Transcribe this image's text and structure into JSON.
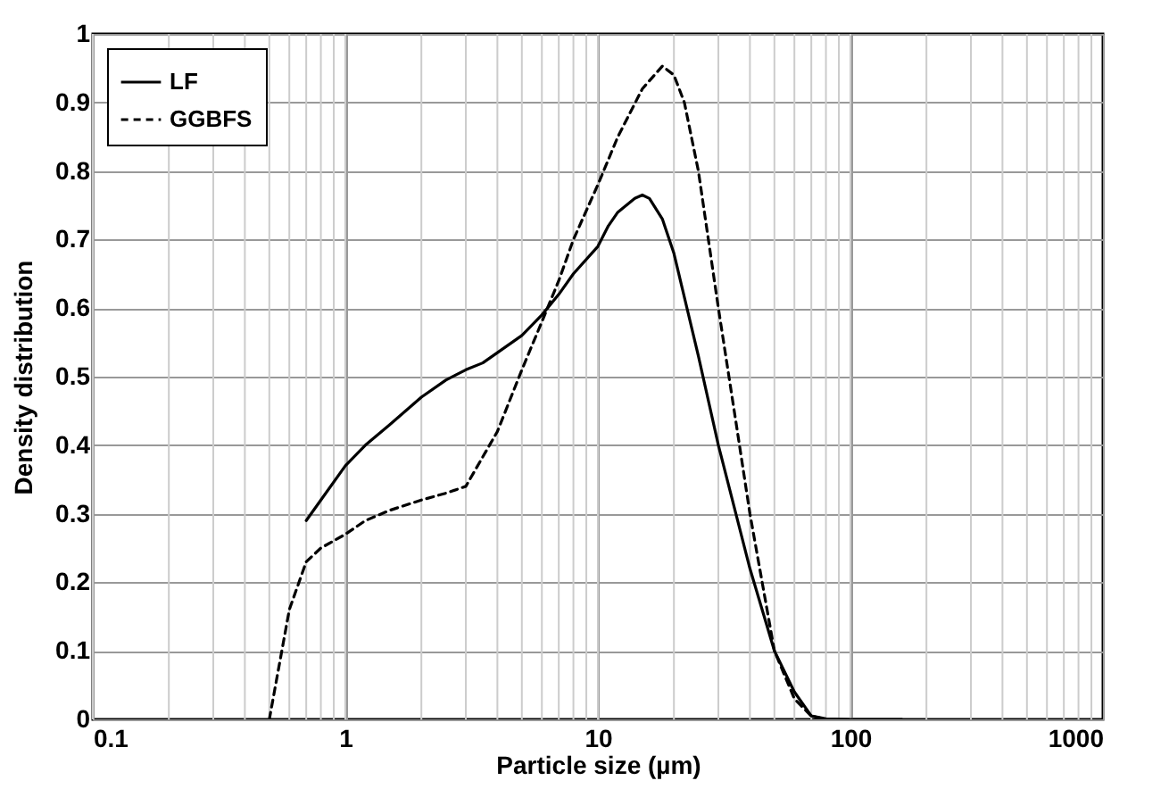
{
  "chart_data": {
    "type": "line",
    "xlabel": "Particle size (µm)",
    "ylabel": "Density distribution",
    "log": "x",
    "xlim": [
      0.1,
      1000
    ],
    "xticks": [
      0.1,
      1,
      10,
      100,
      1000
    ],
    "ylim": [
      0,
      1
    ],
    "yticks": [
      0,
      0.1,
      0.2,
      0.3,
      0.4,
      0.5,
      0.6,
      0.7,
      0.8,
      0.9,
      1
    ],
    "grid": true,
    "legend": "top left",
    "marker": "none",
    "series": [
      {
        "name": "LF",
        "color": "#000000",
        "line_style": "solid",
        "x": [
          0.7,
          0.8,
          1,
          1.2,
          1.5,
          2,
          2.5,
          3,
          3.5,
          4,
          5,
          6,
          7,
          8,
          10,
          11,
          12,
          14,
          15,
          16,
          18,
          20,
          25,
          30,
          40,
          50,
          60,
          70,
          80,
          100,
          160
        ],
        "values": [
          0.29,
          0.32,
          0.37,
          0.4,
          0.43,
          0.47,
          0.495,
          0.51,
          0.52,
          0.535,
          0.56,
          0.59,
          0.62,
          0.65,
          0.69,
          0.72,
          0.74,
          0.76,
          0.765,
          0.76,
          0.73,
          0.68,
          0.53,
          0.4,
          0.22,
          0.1,
          0.04,
          0.005,
          0.001,
          0,
          0
        ]
      },
      {
        "name": "GGBFS",
        "color": "#000000",
        "line_style": "dashed",
        "x": [
          0.5,
          0.6,
          0.7,
          0.8,
          1,
          1.2,
          1.5,
          2,
          2.5,
          3,
          4,
          5,
          6,
          7,
          8,
          10,
          12,
          15,
          18,
          20,
          22,
          25,
          30,
          35,
          40,
          50,
          60,
          70,
          80
        ],
        "values": [
          0,
          0.16,
          0.23,
          0.25,
          0.27,
          0.29,
          0.305,
          0.32,
          0.33,
          0.34,
          0.42,
          0.51,
          0.58,
          0.64,
          0.7,
          0.78,
          0.85,
          0.92,
          0.953,
          0.94,
          0.9,
          0.8,
          0.6,
          0.44,
          0.3,
          0.1,
          0.03,
          0.005,
          0
        ]
      }
    ]
  }
}
